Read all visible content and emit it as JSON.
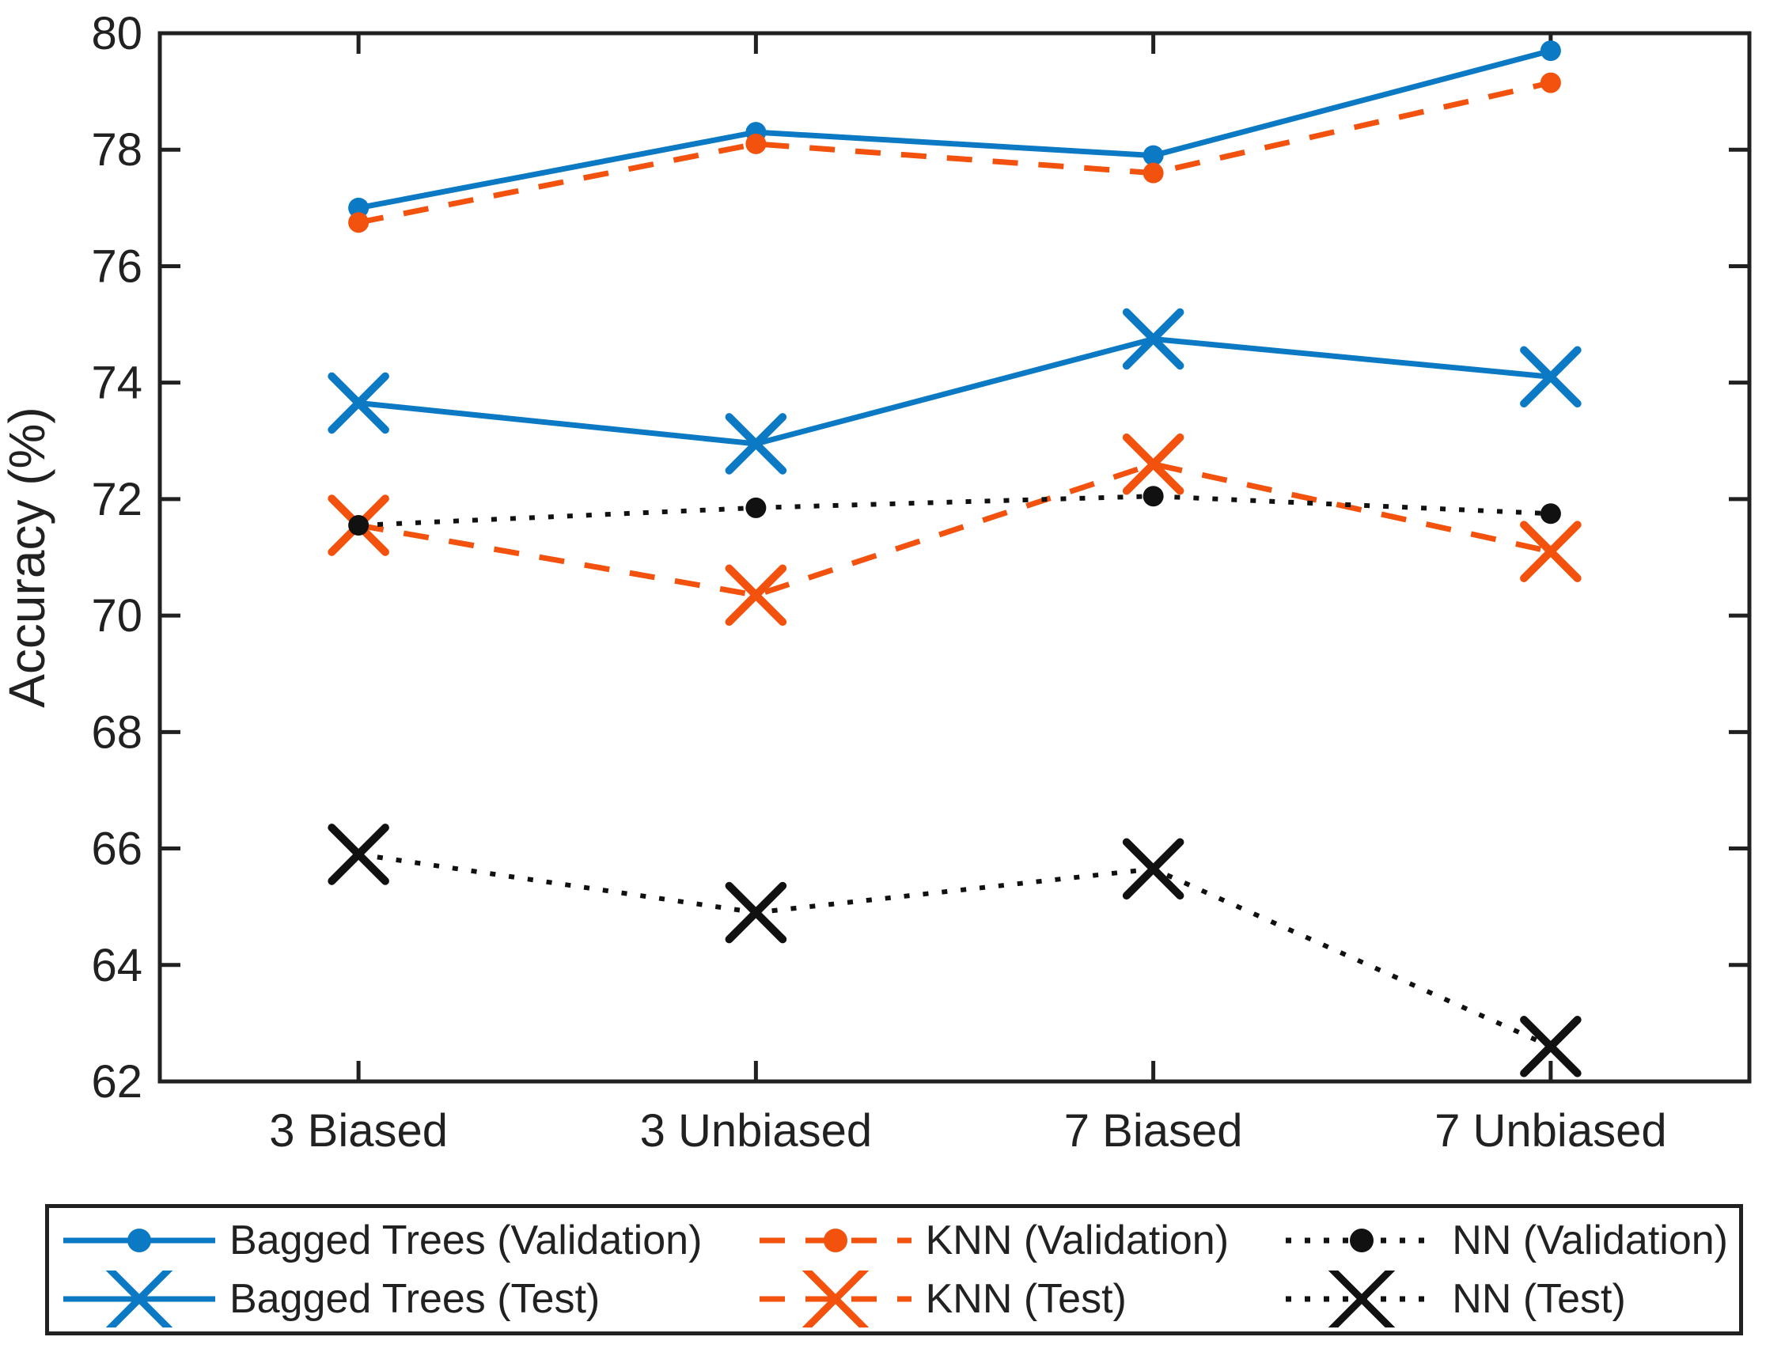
{
  "figure": {
    "background": "#ffffff",
    "axis_color": "#212121"
  },
  "chart_data": {
    "type": "line",
    "title": "",
    "xlabel": "",
    "ylabel": "Accuracy (%)",
    "ylim": [
      62,
      80
    ],
    "yticks": [
      62,
      64,
      66,
      68,
      70,
      72,
      74,
      76,
      78,
      80
    ],
    "grid": false,
    "legend_position": "bottom",
    "categories": [
      "3 Biased",
      "3 Unbiased",
      "7 Biased",
      "7 Unbiased"
    ],
    "palette": {
      "blue": "#0B79C3",
      "orange": "#F2520D",
      "black": "#111111"
    },
    "series": [
      {
        "name": "Bagged Trees (Validation)",
        "color": "blue",
        "line": "solid",
        "marker": "circle",
        "values": [
          77.0,
          78.3,
          77.9,
          79.7
        ]
      },
      {
        "name": "KNN (Validation)",
        "color": "orange",
        "line": "dashed",
        "marker": "circle",
        "values": [
          76.75,
          78.1,
          77.6,
          79.15
        ]
      },
      {
        "name": "NN (Validation)",
        "color": "black",
        "line": "dotted",
        "marker": "circle",
        "values": [
          71.55,
          71.85,
          72.05,
          71.75
        ]
      },
      {
        "name": "Bagged Trees (Test)",
        "color": "blue",
        "line": "solid",
        "marker": "x",
        "values": [
          73.65,
          72.95,
          74.75,
          74.1
        ]
      },
      {
        "name": "KNN (Test)",
        "color": "orange",
        "line": "dashed",
        "marker": "x",
        "values": [
          71.55,
          70.35,
          72.6,
          71.1
        ]
      },
      {
        "name": "NN (Test)",
        "color": "black",
        "line": "dotted",
        "marker": "x",
        "values": [
          65.9,
          64.9,
          65.65,
          62.6
        ]
      }
    ],
    "draw_order": [
      0,
      1,
      3,
      4,
      2,
      5
    ]
  }
}
